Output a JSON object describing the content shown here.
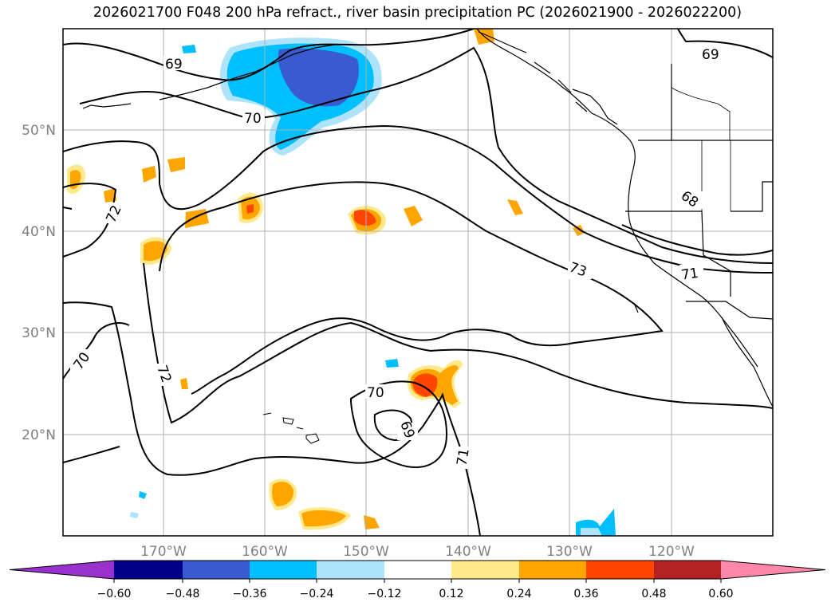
{
  "title": "2026021700 F048 200 hPa refract., river basin precipitation PC (2026021900 - 2026022200)",
  "map": {
    "lat_labels": [
      "50°N",
      "40°N",
      "30°N",
      "20°N"
    ],
    "lon_labels": [
      "170°W",
      "160°W",
      "150°W",
      "140°W",
      "130°W",
      "120°W"
    ],
    "contour_labels": [
      "69",
      "69",
      "70",
      "72",
      "70",
      "72",
      "70",
      "69",
      "71",
      "73",
      "71",
      "68"
    ],
    "label_color": "#808080"
  },
  "colorbar": {
    "ticks": [
      "−0.60",
      "−0.48",
      "−0.36",
      "−0.24",
      "−0.12",
      "0.12",
      "0.24",
      "0.36",
      "0.48",
      "0.60"
    ],
    "colors": [
      "#9932cc",
      "#00008b",
      "#3a5bcf",
      "#00bfff",
      "#ade3fb",
      "#ffffff",
      "#ffe98a",
      "#ffa500",
      "#ff4500",
      "#b22222",
      "#ff88aa"
    ]
  }
}
